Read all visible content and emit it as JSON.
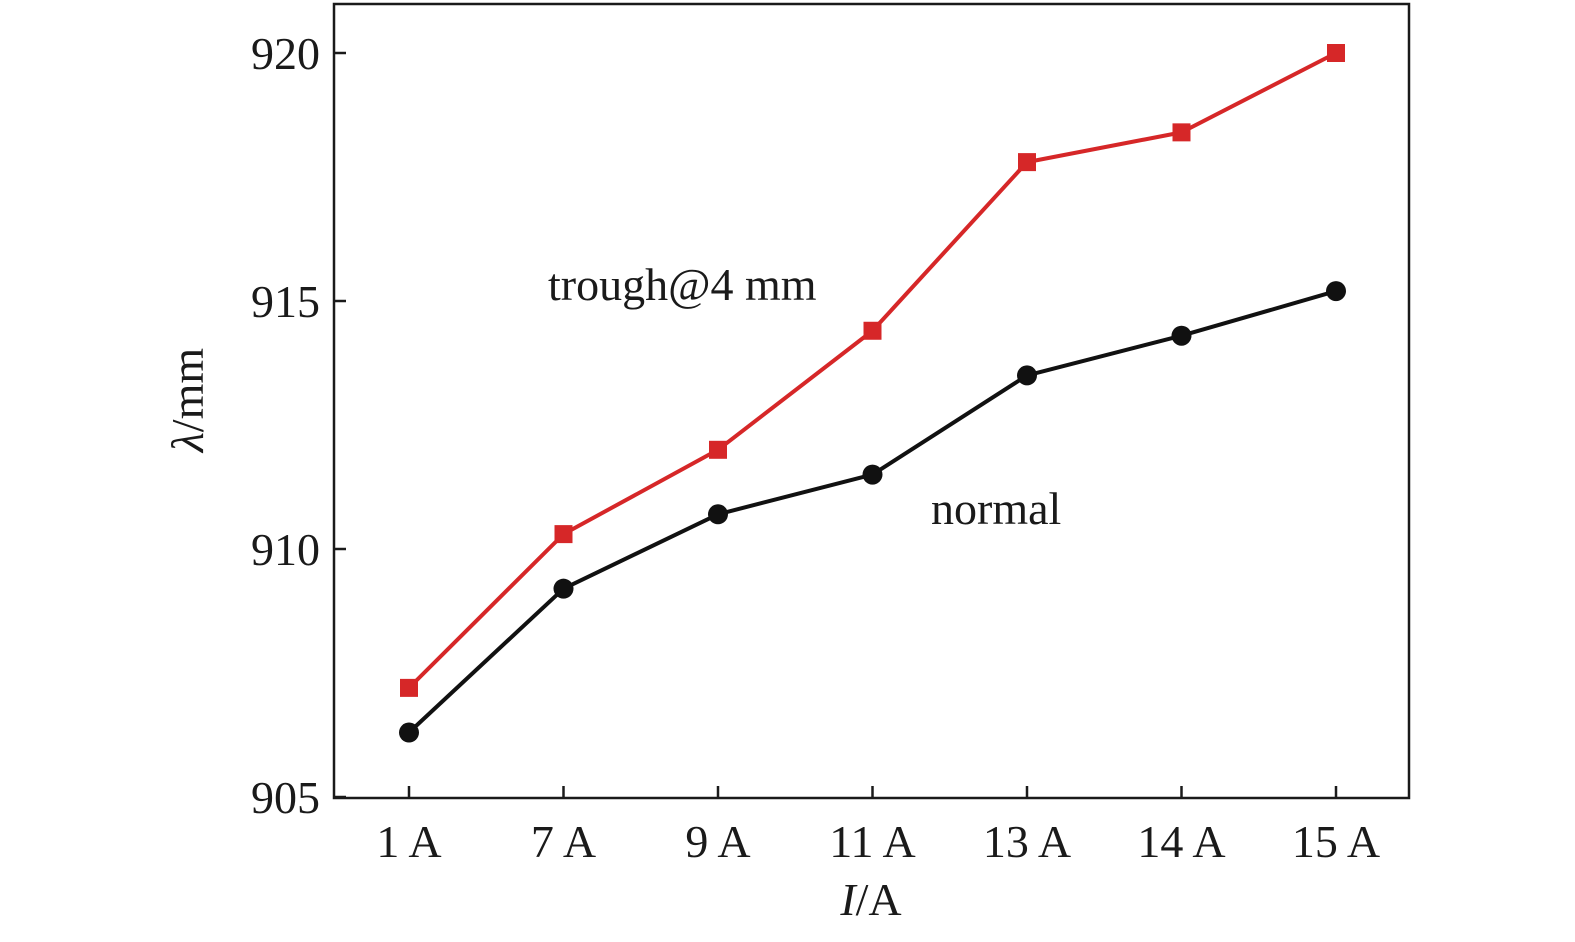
{
  "chart_data": {
    "type": "line",
    "categories": [
      "1 A",
      "7 A",
      "9 A",
      "11 A",
      "13 A",
      "14 A",
      "15 A"
    ],
    "xlabel": {
      "italic": "I",
      "rest": "/A"
    },
    "ylabel": {
      "italic": "λ",
      "rest": "/mm"
    },
    "ylim": [
      905,
      920
    ],
    "yticks": [
      905,
      910,
      915,
      920
    ],
    "grid": false,
    "series": [
      {
        "name": "trough@4 mm",
        "color": "#d62728",
        "marker": "square",
        "values": [
          907.2,
          910.3,
          912.0,
          914.4,
          917.8,
          918.4,
          920.0
        ]
      },
      {
        "name": "normal",
        "color": "#111111",
        "marker": "circle",
        "values": [
          906.3,
          909.2,
          910.7,
          911.5,
          913.5,
          914.3,
          915.2
        ]
      }
    ]
  }
}
